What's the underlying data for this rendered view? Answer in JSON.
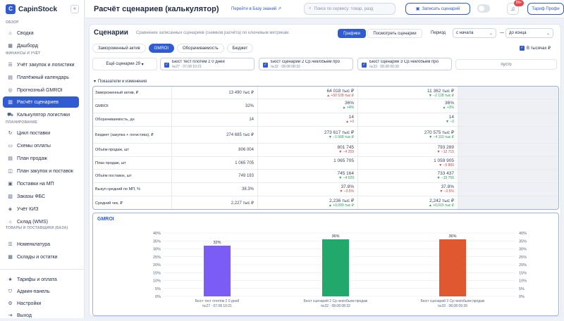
{
  "app": {
    "name": "CapinStock",
    "logo_letter": "C"
  },
  "sidebar": {
    "sections": {
      "overview": "ОБЗОР",
      "finance": "ФИНАНСЫ И УЧЁТ",
      "planning": "ПЛАНИРОВАНИЕ",
      "goods": "ТОВАРЫ И ПОСТАВЩИКИ (БАЗА)"
    },
    "items": [
      {
        "label": "Сводка",
        "icon": "home-icon"
      },
      {
        "label": "Дашборд",
        "icon": "dashboard-icon"
      },
      {
        "label": "Учёт закупок и логистики",
        "icon": "ledger-icon"
      },
      {
        "label": "Платёжный календарь",
        "icon": "calendar-icon"
      },
      {
        "label": "Прогнозный GMROI",
        "icon": "target-icon"
      },
      {
        "label": "Расчёт сценариев",
        "icon": "calculator-icon"
      },
      {
        "label": "Калькулятор логистики",
        "icon": "truck-icon"
      },
      {
        "label": "Цикл поставки",
        "icon": "cycle-icon"
      },
      {
        "label": "Схемы оплаты",
        "icon": "card-icon"
      },
      {
        "label": "План продаж",
        "icon": "plan-icon"
      },
      {
        "label": "План закупок и поставок",
        "icon": "cart-icon"
      },
      {
        "label": "Поставки на МП",
        "icon": "box-icon"
      },
      {
        "label": "Заказы ФБС",
        "icon": "orders-icon"
      },
      {
        "label": "Учёт КИЗ",
        "icon": "tag-icon"
      },
      {
        "label": "Склад (WMS)",
        "icon": "warehouse-icon"
      },
      {
        "label": "Номенклатура",
        "icon": "list-icon"
      },
      {
        "label": "Склады и остатки",
        "icon": "stock-icon"
      }
    ],
    "bottom": [
      {
        "label": "Тарифы и оплата",
        "icon": "star-icon"
      },
      {
        "label": "Админ-панель",
        "icon": "shield-icon"
      },
      {
        "label": "Настройки",
        "icon": "gear-icon"
      },
      {
        "label": "Выход",
        "icon": "logout-icon"
      }
    ],
    "collapse_icon": "«"
  },
  "topbar": {
    "title": "Расчёт сценариев (калькулятор)",
    "kb_link": "Перейти в Базу знаний ↗",
    "search_placeholder": "Поиск по сервису: товар, разд",
    "save_button": "Записать сценарий",
    "notif_count": "99+",
    "tarif_button": "Тариф Профи"
  },
  "panel": {
    "title": "Сценарии",
    "subtitle": "Сравнение записанных сценариев (снимков расчёта) по ключевым метрикам.",
    "view_graphs": "Графики",
    "view_scenarios": "Посмотреть сценарии",
    "period_label": "Период",
    "period_from": "с начала",
    "period_sep": "—",
    "period_to": "до конца",
    "tabs": [
      "Замороженный актив",
      "GMROI",
      "Оборачиваемость",
      "Бюджет"
    ],
    "in_thousands": "В тысячах ₽",
    "selector": "Ещё сценарии 29",
    "scenarios": [
      {
        "name": "Бюст тест плотём 2 0 дней",
        "date": "№27 · 07.08 10:21"
      },
      {
        "name": "Бюст сценарий 2 Ср.чек/обьем про",
        "date": "№32 · 08.08 08:32"
      },
      {
        "name": "Бюст сценарий 3 Ср.чек/обьем про",
        "date": "№33 · 08.08 09:39"
      }
    ],
    "empty_slot": "пусто",
    "section_header": "Показатели и изменения"
  },
  "table": {
    "rows": [
      {
        "label": "Замороженный актив, ₽",
        "base": "13 490 тыс ₽",
        "s": [
          {
            "v": "64 018 тыс ₽",
            "d": "▲ +50 528 тыс ₽",
            "c": "dn"
          },
          {
            "v": "11 362 тыс ₽",
            "d": "▼ −2 128 тыс ₽",
            "c": "up"
          }
        ]
      },
      {
        "label": "GMROI",
        "base": "32%",
        "s": [
          {
            "v": "36%",
            "d": "▲ +4%",
            "c": "up"
          },
          {
            "v": "36%",
            "d": "▲ +3%",
            "c": "up"
          }
        ]
      },
      {
        "label": "Оборачиваемость, дн",
        "base": "14",
        "s": [
          {
            "v": "14",
            "d": "▲ +0",
            "c": "dn"
          },
          {
            "v": "14",
            "d": "▼ −0",
            "c": "up"
          }
        ]
      },
      {
        "label": "Бюджет (закупка + логистика), ₽",
        "base": "274 685 тыс ₽",
        "s": [
          {
            "v": "273 617 тыс ₽",
            "d": "▼ −1 068 тыс ₽",
            "c": "up"
          },
          {
            "v": "270 575 тыс ₽",
            "d": "▼ −4 110 тыс ₽",
            "c": "up"
          }
        ]
      },
      {
        "label": "Объём продаж, шт",
        "base": "806 004",
        "s": [
          {
            "v": "801 745",
            "d": "▼ −4 259",
            "c": "dn"
          },
          {
            "v": "793 289",
            "d": "▼ −12 715",
            "c": "dn"
          }
        ]
      },
      {
        "label": "План продаж, шт",
        "base": "1 065 705",
        "s": [
          {
            "v": "1 065 705",
            "d": "",
            "c": "up"
          },
          {
            "v": "1 059 905",
            "d": "▼ −5 800",
            "c": "dn"
          }
        ]
      },
      {
        "label": "Объём поставок, шт",
        "base": "749 193",
        "s": [
          {
            "v": "745 164",
            "d": "▼ −4 029",
            "c": "up"
          },
          {
            "v": "733 437",
            "d": "▼ −15 756",
            "c": "up"
          }
        ]
      },
      {
        "label": "Выкуп средний по МП, %",
        "base": "38.3%",
        "s": [
          {
            "v": "37.8%",
            "d": "▼ −0.5%",
            "c": "dn"
          },
          {
            "v": "37.8%",
            "d": "▼ −0.5%",
            "c": "dn"
          }
        ]
      },
      {
        "label": "Средний чек, ₽",
        "base": "2,227 тыс ₽",
        "s": [
          {
            "v": "2,236 тыс ₽",
            "d": "▲ +0,009 тыс ₽",
            "c": "up"
          },
          {
            "v": "2,242 тыс ₽",
            "d": "▲ +0,015 тыс ₽",
            "c": "up"
          }
        ]
      }
    ]
  },
  "chart_data": {
    "type": "bar",
    "title": "GMROI",
    "categories": [
      "Бюст тест плотём 2 0 дней",
      "Бюст сценарий 2 Ср.чек/обьем продаж",
      "Бюст сценарий 3 Ср.чек/обьем продаж"
    ],
    "category_dates": [
      "№27 · 07.08 10:21",
      "№32 · 08.08 08:32",
      "№33 · 08.08 09:39"
    ],
    "values": [
      32,
      36,
      36
    ],
    "value_labels": [
      "32%",
      "36%",
      "36%"
    ],
    "colors": [
      "#7b5cf5",
      "#22a86b",
      "#e0582f"
    ],
    "ylim": [
      0,
      40
    ],
    "yticks": [
      "0%",
      "5%",
      "10%",
      "15%",
      "20%",
      "25%",
      "30%",
      "35%",
      "40%"
    ],
    "grid": true
  }
}
